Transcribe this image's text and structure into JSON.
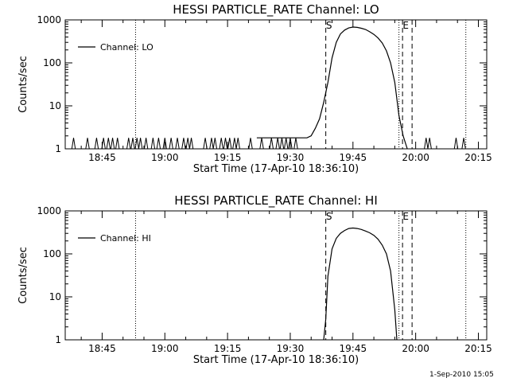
{
  "chart_data": [
    {
      "type": "line",
      "title": "HESSI PARTICLE_RATE Channel: LO",
      "xlabel": "Start Time (17-Apr-10 18:36:10)",
      "ylabel": "Counts/sec",
      "y_scale": "log",
      "ylim": [
        1,
        1000
      ],
      "xlim": [
        "18:36:10",
        "20:17:00"
      ],
      "x_ticks": [
        "18:45",
        "19:00",
        "19:15",
        "19:30",
        "19:45",
        "20:00",
        "20:15"
      ],
      "y_ticks": [
        "1",
        "10",
        "100",
        "1000"
      ],
      "legend": {
        "entries": [
          "Channel: LO"
        ],
        "placement": "top-left"
      },
      "markers": [
        {
          "label": "S",
          "time": "19:38:30",
          "style": "dashed"
        },
        {
          "label": "E",
          "time": "19:58:00",
          "style": "dashed-pair"
        }
      ],
      "dotted_lines": [
        "18:53:00",
        "19:56:00",
        "20:12:00"
      ],
      "series": [
        {
          "name": "Channel: LO",
          "x": [
            "19:22:00",
            "19:32:00",
            "19:33:00",
            "19:34:00",
            "19:35:00",
            "19:36:00",
            "19:37:00",
            "19:38:00",
            "19:39:00",
            "19:40:00",
            "19:41:00",
            "19:42:00",
            "19:43:00",
            "19:44:00",
            "19:45:00",
            "19:46:00",
            "19:47:00",
            "19:48:00",
            "19:49:00",
            "19:50:00",
            "19:51:00",
            "19:52:00",
            "19:53:00",
            "19:54:00",
            "19:55:00",
            "19:56:00",
            "19:57:00",
            "19:58:00"
          ],
          "values": [
            1.8,
            1.8,
            1.8,
            1.8,
            2,
            3,
            5,
            12,
            35,
            130,
            300,
            470,
            580,
            650,
            680,
            670,
            640,
            600,
            530,
            460,
            380,
            290,
            190,
            100,
            35,
            6,
            2,
            1
          ],
          "background_spikes": [
            "18:38:10",
            "18:41:30",
            "18:43:40",
            "18:45:20",
            "18:46:30",
            "18:47:30",
            "18:48:40",
            "18:51:20",
            "18:52:20",
            "18:53:20",
            "18:54:10",
            "18:55:30",
            "18:57:10",
            "18:58:30",
            "19:00:00",
            "19:01:30",
            "19:03:00",
            "19:04:30",
            "19:05:30",
            "19:06:20",
            "19:09:40",
            "19:11:10",
            "19:12:00",
            "19:13:30",
            "19:14:30",
            "19:15:30",
            "19:16:40",
            "19:17:30",
            "19:20:30",
            "19:23:10",
            "19:25:30",
            "19:27:00",
            "19:28:00",
            "19:29:00",
            "19:30:00",
            "19:31:20",
            "20:02:30",
            "20:03:20",
            "20:09:40",
            "20:11:30"
          ]
        }
      ]
    },
    {
      "type": "line",
      "title": "HESSI PARTICLE_RATE Channel: HI",
      "xlabel": "Start Time (17-Apr-10 18:36:10)",
      "ylabel": "Counts/sec",
      "y_scale": "log",
      "ylim": [
        1,
        1000
      ],
      "xlim": [
        "18:36:10",
        "20:17:00"
      ],
      "x_ticks": [
        "18:45",
        "19:00",
        "19:15",
        "19:30",
        "19:45",
        "20:00",
        "20:15"
      ],
      "y_ticks": [
        "1",
        "10",
        "100",
        "1000"
      ],
      "legend": {
        "entries": [
          "Channel: HI"
        ],
        "placement": "top-left"
      },
      "markers": [
        {
          "label": "S",
          "time": "19:38:30",
          "style": "dashed"
        },
        {
          "label": "E",
          "time": "19:58:00",
          "style": "dashed-pair"
        }
      ],
      "dotted_lines": [
        "18:53:00",
        "19:56:00",
        "20:12:00"
      ],
      "series": [
        {
          "name": "Channel: HI",
          "x": [
            "19:38:00",
            "19:38:30",
            "19:39:00",
            "19:40:00",
            "19:41:00",
            "19:42:00",
            "19:43:00",
            "19:44:00",
            "19:45:00",
            "19:46:00",
            "19:47:00",
            "19:48:00",
            "19:49:00",
            "19:50:00",
            "19:51:00",
            "19:52:00",
            "19:53:00",
            "19:54:00",
            "19:55:00",
            "19:55:30"
          ],
          "values": [
            1,
            3,
            30,
            130,
            230,
            300,
            350,
            390,
            400,
            390,
            370,
            340,
            310,
            270,
            220,
            160,
            100,
            40,
            5,
            1
          ]
        }
      ]
    }
  ],
  "footer": {
    "timestamp": "1-Sep-2010 15:05"
  }
}
